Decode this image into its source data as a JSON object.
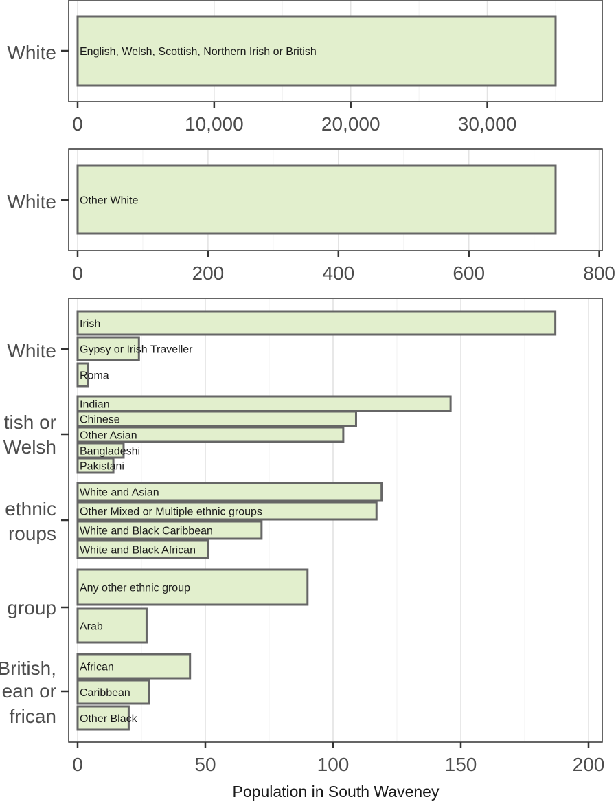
{
  "chart_data": {
    "type": "bar",
    "orientation": "horizontal",
    "x_axis_title": "Population in South Waveney",
    "panels": [
      {
        "xlim": [
          0,
          38000
        ],
        "x_ticks": [
          0,
          10000,
          20000,
          30000
        ],
        "x_tick_labels": [
          "0",
          "10,000",
          "20,000",
          "30,000"
        ],
        "groups": [
          {
            "label": "White",
            "bars": [
              {
                "category": "English, Welsh, Scottish, Northern Irish or British",
                "value": 35000
              }
            ]
          }
        ]
      },
      {
        "xlim": [
          0,
          800
        ],
        "x_ticks": [
          0,
          200,
          400,
          600,
          800
        ],
        "x_tick_labels": [
          "0",
          "200",
          "400",
          "600",
          "800"
        ],
        "groups": [
          {
            "label": "White",
            "bars": [
              {
                "category": "Other White",
                "value": 733
              }
            ]
          }
        ]
      },
      {
        "xlim": [
          0,
          205
        ],
        "x_ticks": [
          0,
          50,
          100,
          150,
          200
        ],
        "x_tick_labels": [
          "0",
          "50",
          "100",
          "150",
          "200"
        ],
        "groups": [
          {
            "label": "White",
            "bars": [
              {
                "category": "Irish",
                "value": 187
              },
              {
                "category": "Gypsy or Irish Traveller",
                "value": 24
              },
              {
                "category": "Roma",
                "value": 4
              }
            ]
          },
          {
            "label": "tish or\nWelsh",
            "bars": [
              {
                "category": "Indian",
                "value": 146
              },
              {
                "category": "Chinese",
                "value": 109
              },
              {
                "category": "Other Asian",
                "value": 104
              },
              {
                "category": "Bangladeshi",
                "value": 18
              },
              {
                "category": "Pakistani",
                "value": 14
              }
            ]
          },
          {
            "label": "ethnic\nroups",
            "bars": [
              {
                "category": "White and Asian",
                "value": 119
              },
              {
                "category": "Other Mixed or Multiple ethnic groups",
                "value": 117
              },
              {
                "category": "White and Black Caribbean",
                "value": 72
              },
              {
                "category": "White and Black African",
                "value": 51
              }
            ]
          },
          {
            "label": "group",
            "bars": [
              {
                "category": "Any other ethnic group",
                "value": 90
              },
              {
                "category": "Arab",
                "value": 27
              }
            ]
          },
          {
            "label": "British,\nean or\nfrican",
            "bars": [
              {
                "category": "African",
                "value": 44
              },
              {
                "category": "Caribbean",
                "value": 28
              },
              {
                "category": "Other Black",
                "value": 20
              }
            ]
          }
        ]
      }
    ]
  },
  "colors": {
    "bar_fill": "#e2efcd",
    "bar_stroke": "#666666",
    "grid": "#e3e3e3",
    "frame": "#333333",
    "text": "#4d4d4d"
  }
}
